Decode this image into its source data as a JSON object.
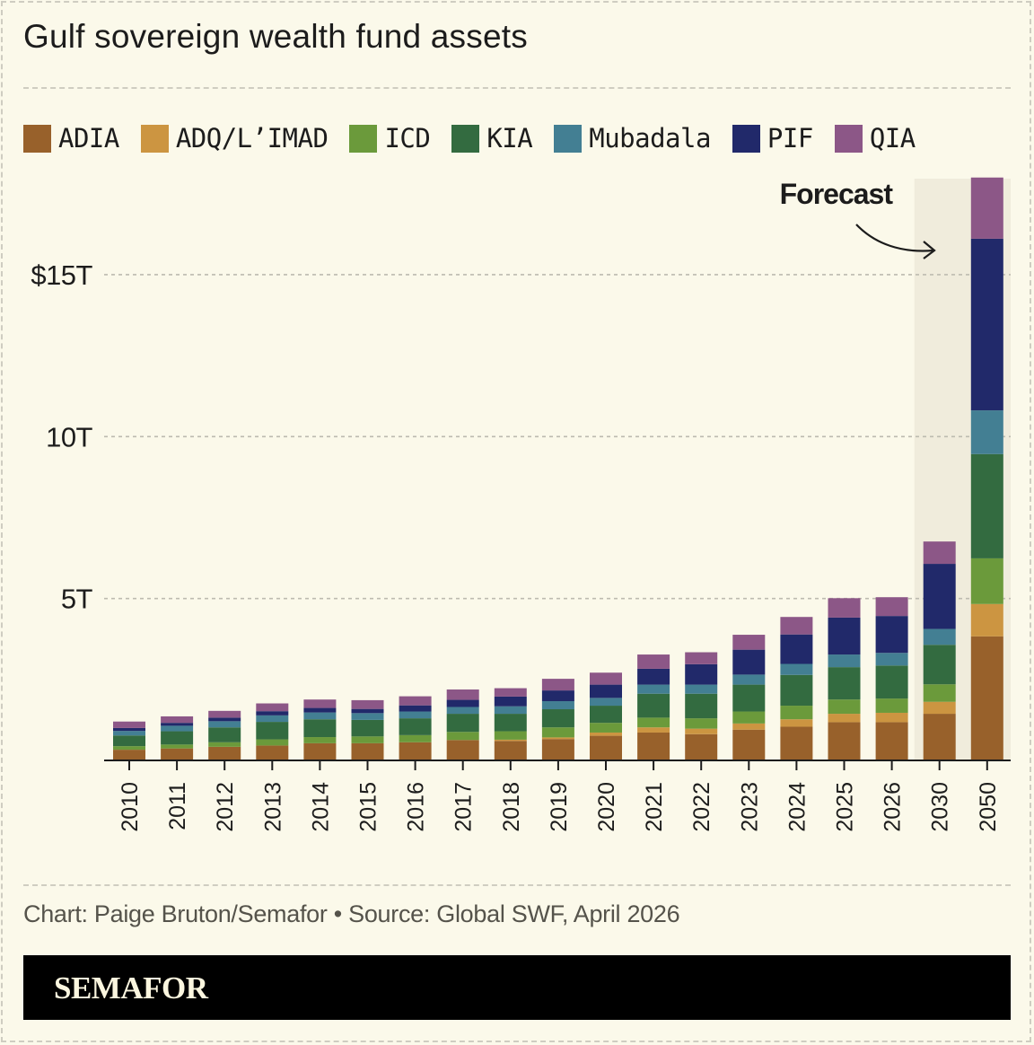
{
  "page": {
    "title": "Gulf sovereign wealth fund assets",
    "credit": "Chart: Paige Bruton/Semafor • Source: Global SWF, April 2026",
    "brand": "SEMAFOR"
  },
  "colors": {
    "background": "#fbf9ea",
    "forecast_shade": "#f0ecdc",
    "axis": "#1c1c1c",
    "grid": "#bdbbb0"
  },
  "chart_data": {
    "type": "bar",
    "stacked": true,
    "title": "Gulf sovereign wealth fund assets",
    "xlabel": "",
    "ylabel": "",
    "ylim": [
      0,
      18
    ],
    "yticks": [
      {
        "value": 5,
        "label": "5T"
      },
      {
        "value": 10,
        "label": "10T"
      },
      {
        "value": 15,
        "label": "$15T"
      }
    ],
    "grid": true,
    "legend_position": "top",
    "annotation": {
      "text": "Forecast",
      "target": [
        "2030",
        "2050"
      ]
    },
    "forecast_categories": [
      "2030",
      "2050"
    ],
    "categories": [
      "2010",
      "2011",
      "2012",
      "2013",
      "2014",
      "2015",
      "2016",
      "2017",
      "2018",
      "2019",
      "2020",
      "2021",
      "2022",
      "2023",
      "2024",
      "2025",
      "2026",
      "2030",
      "2050"
    ],
    "series": [
      {
        "name": "ADIA",
        "color": "#98612b",
        "values": [
          0.33,
          0.37,
          0.42,
          0.46,
          0.53,
          0.53,
          0.56,
          0.63,
          0.6,
          0.66,
          0.76,
          0.86,
          0.81,
          0.95,
          1.04,
          1.18,
          1.18,
          1.44,
          3.83
        ]
      },
      {
        "name": "ADQ/L’IMAD",
        "color": "#cc9541",
        "values": [
          0,
          0,
          0,
          0,
          0,
          0,
          0,
          0,
          0.04,
          0.05,
          0.1,
          0.16,
          0.17,
          0.19,
          0.23,
          0.26,
          0.29,
          0.37,
          1.0
        ]
      },
      {
        "name": "ICD",
        "color": "#6b9a3b",
        "values": [
          0.11,
          0.12,
          0.14,
          0.19,
          0.19,
          0.21,
          0.22,
          0.25,
          0.26,
          0.31,
          0.3,
          0.3,
          0.32,
          0.37,
          0.42,
          0.44,
          0.44,
          0.54,
          1.41
        ]
      },
      {
        "name": "KIA",
        "color": "#336b40",
        "values": [
          0.33,
          0.41,
          0.46,
          0.54,
          0.55,
          0.51,
          0.52,
          0.56,
          0.54,
          0.56,
          0.53,
          0.74,
          0.76,
          0.83,
          0.95,
          1.0,
          1.02,
          1.22,
          3.22
        ]
      },
      {
        "name": "Mubadala",
        "color": "#437f93",
        "values": [
          0.14,
          0.17,
          0.19,
          0.2,
          0.21,
          0.21,
          0.21,
          0.21,
          0.23,
          0.25,
          0.24,
          0.28,
          0.28,
          0.31,
          0.34,
          0.39,
          0.39,
          0.49,
          1.35
        ]
      },
      {
        "name": "PIF",
        "color": "#21296a",
        "values": [
          0.09,
          0.09,
          0.11,
          0.13,
          0.14,
          0.13,
          0.19,
          0.22,
          0.3,
          0.33,
          0.41,
          0.49,
          0.63,
          0.77,
          0.91,
          1.14,
          1.14,
          2.01,
          5.3
        ]
      },
      {
        "name": "QIA",
        "color": "#8c5787",
        "values": [
          0.2,
          0.2,
          0.21,
          0.24,
          0.26,
          0.27,
          0.28,
          0.32,
          0.26,
          0.36,
          0.37,
          0.44,
          0.37,
          0.46,
          0.54,
          0.6,
          0.58,
          0.69,
          1.89
        ]
      }
    ]
  }
}
